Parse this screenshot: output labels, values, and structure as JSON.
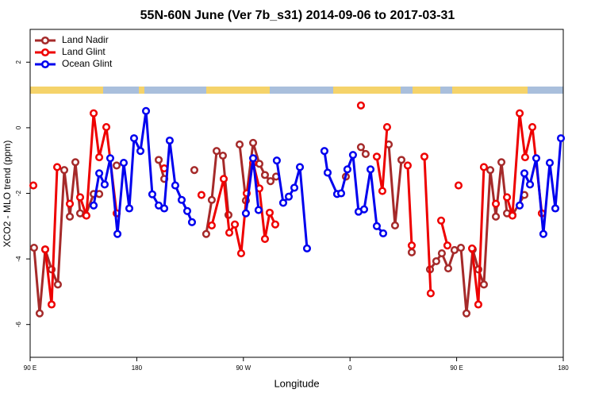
{
  "chart_data": {
    "type": "line",
    "title": "55N-60N June (Ver 7b_s31)   2014-09-06 to 2017-03-31",
    "xlabel": "Longitude",
    "ylabel": "XCO2 - MLO trend (ppm)",
    "xlim": [
      90,
      540
    ],
    "ylim": [
      -7,
      3
    ],
    "xticks": [
      {
        "value": 90,
        "label": "90 E"
      },
      180,
      {
        "value": 270,
        "label": "90 W"
      },
      {
        "value": 360,
        "label": "0"
      },
      {
        "value": 450,
        "label": "90 E"
      },
      {
        "value": 540,
        "label": "180"
      }
    ],
    "yticks": [
      2,
      0,
      -2,
      -4,
      -6
    ],
    "legend": "top-left",
    "series": [
      {
        "name": "Land Nadir",
        "color": "#a52a2a",
        "x": [
          93.3,
          98.0,
          102.7,
          108.1,
          113.4,
          118.8,
          123.5,
          128.2,
          132.2,
          136.9,
          143.6,
          148.3,
          null,
          163.0,
          null,
          198.5,
          203.2,
          null,
          228.6,
          null,
          238.6,
          243.3,
          247.4,
          252.7,
          257.4,
          null,
          266.8,
          272.1,
          278.2,
          283.5,
          288.2,
          292.9,
          297.6,
          null,
          356.5,
          null,
          369.2,
          373.2,
          null,
          392.7,
          398.0,
          403.4,
          null,
          412.1,
          null,
          427.5,
          432.8,
          437.5,
          442.9,
          448.2,
          453.6,
          458.3,
          463.6,
          468.3,
          473.0,
          478.4,
          483.1,
          487.8,
          492.5,
          497.1,
          507.2
        ],
        "values": [
          -3.66,
          -5.66,
          -3.71,
          -4.32,
          -4.78,
          -1.29,
          -2.71,
          -1.05,
          -2.61,
          -2.66,
          -2.02,
          -2.02,
          null,
          -1.15,
          null,
          -0.98,
          -1.56,
          null,
          -1.29,
          null,
          -3.24,
          -2.2,
          -0.71,
          -0.85,
          -2.66,
          null,
          -0.51,
          -2.22,
          -0.46,
          -1.1,
          -1.44,
          -1.63,
          -1.49,
          null,
          -1.49,
          null,
          -0.59,
          -0.8,
          null,
          -0.51,
          -2.98,
          -0.98,
          null,
          -3.8,
          null,
          -4.32,
          -4.07,
          -3.83,
          -4.29,
          -3.73,
          -3.66,
          -5.66,
          -3.71,
          -4.32,
          -4.78,
          -1.29,
          -2.71,
          -1.05,
          -2.61,
          -2.66,
          -2.05
        ]
      },
      {
        "name": "Land Glint",
        "color": "#ee0000",
        "x": [
          92.7,
          null,
          102.7,
          108.1,
          112.8,
          null,
          123.5,
          null,
          132.2,
          137.5,
          143.6,
          148.3,
          154.3,
          163.0,
          null,
          203.2,
          null,
          234.6,
          null,
          243.3,
          253.4,
          258.1,
          262.8,
          268.1,
          272.8,
          278.2,
          283.5,
          288.2,
          292.2,
          296.9,
          null,
          369.2,
          null,
          382.6,
          387.3,
          391.3,
          null,
          408.7,
          412.1,
          null,
          422.8,
          428.1,
          null,
          436.9,
          442.2,
          null,
          451.6,
          null,
          463.0,
          468.3,
          473.0,
          null,
          483.1,
          null,
          492.5,
          497.1,
          503.2,
          507.8,
          513.9,
          521.9
        ],
        "values": [
          -1.76,
          null,
          -3.71,
          -5.39,
          -1.2,
          null,
          -2.32,
          null,
          -2.12,
          -2.68,
          0.44,
          -0.9,
          0.02,
          -2.61,
          null,
          -1.24,
          null,
          -2.05,
          null,
          -2.98,
          -1.56,
          -3.2,
          -2.95,
          -3.83,
          -2.0,
          -1.07,
          -1.85,
          -3.39,
          -2.59,
          -2.95,
          null,
          0.68,
          null,
          -0.88,
          -1.93,
          0.02,
          null,
          -1.15,
          -3.59,
          null,
          -0.88,
          -5.05,
          null,
          -2.83,
          -3.59,
          null,
          -1.76,
          null,
          -3.68,
          -5.39,
          -1.2,
          null,
          -2.32,
          null,
          -2.12,
          -2.68,
          0.44,
          -0.9,
          0.02,
          -2.61
        ]
      },
      {
        "name": "Ocean Glint",
        "color": "#0000ee",
        "x": [
          143.6,
          148.3,
          152.9,
          157.6,
          163.7,
          169.0,
          173.7,
          177.7,
          183.1,
          187.8,
          193.1,
          198.5,
          203.2,
          207.8,
          212.5,
          217.9,
          222.6,
          226.6,
          null,
          272.1,
          278.2,
          282.8,
          null,
          298.2,
          303.6,
          308.3,
          313.0,
          317.7,
          323.7,
          null,
          338.4,
          341.1,
          349.1,
          352.5,
          357.8,
          362.5,
          367.2,
          371.9,
          377.3,
          382.6,
          388.0,
          null,
          503.2,
          507.2,
          511.9,
          517.2,
          523.2,
          528.6,
          533.3,
          538.0
        ],
        "values": [
          -2.37,
          -1.39,
          -1.73,
          -0.93,
          -3.24,
          -1.07,
          -2.46,
          -0.32,
          -0.71,
          0.51,
          -2.03,
          -2.37,
          -2.46,
          -0.39,
          -1.76,
          -2.2,
          -2.54,
          -2.88,
          null,
          -2.61,
          -0.93,
          -2.51,
          null,
          -1.0,
          -2.29,
          -2.1,
          -1.83,
          -1.2,
          -3.68,
          null,
          -0.71,
          -1.37,
          -2.02,
          -2.0,
          -1.27,
          -0.83,
          -2.56,
          -2.49,
          -1.27,
          -3.0,
          -3.22,
          null,
          -2.37,
          -1.39,
          -1.73,
          -0.93,
          -3.24,
          -1.07,
          -2.46,
          -0.32
        ]
      }
    ]
  }
}
